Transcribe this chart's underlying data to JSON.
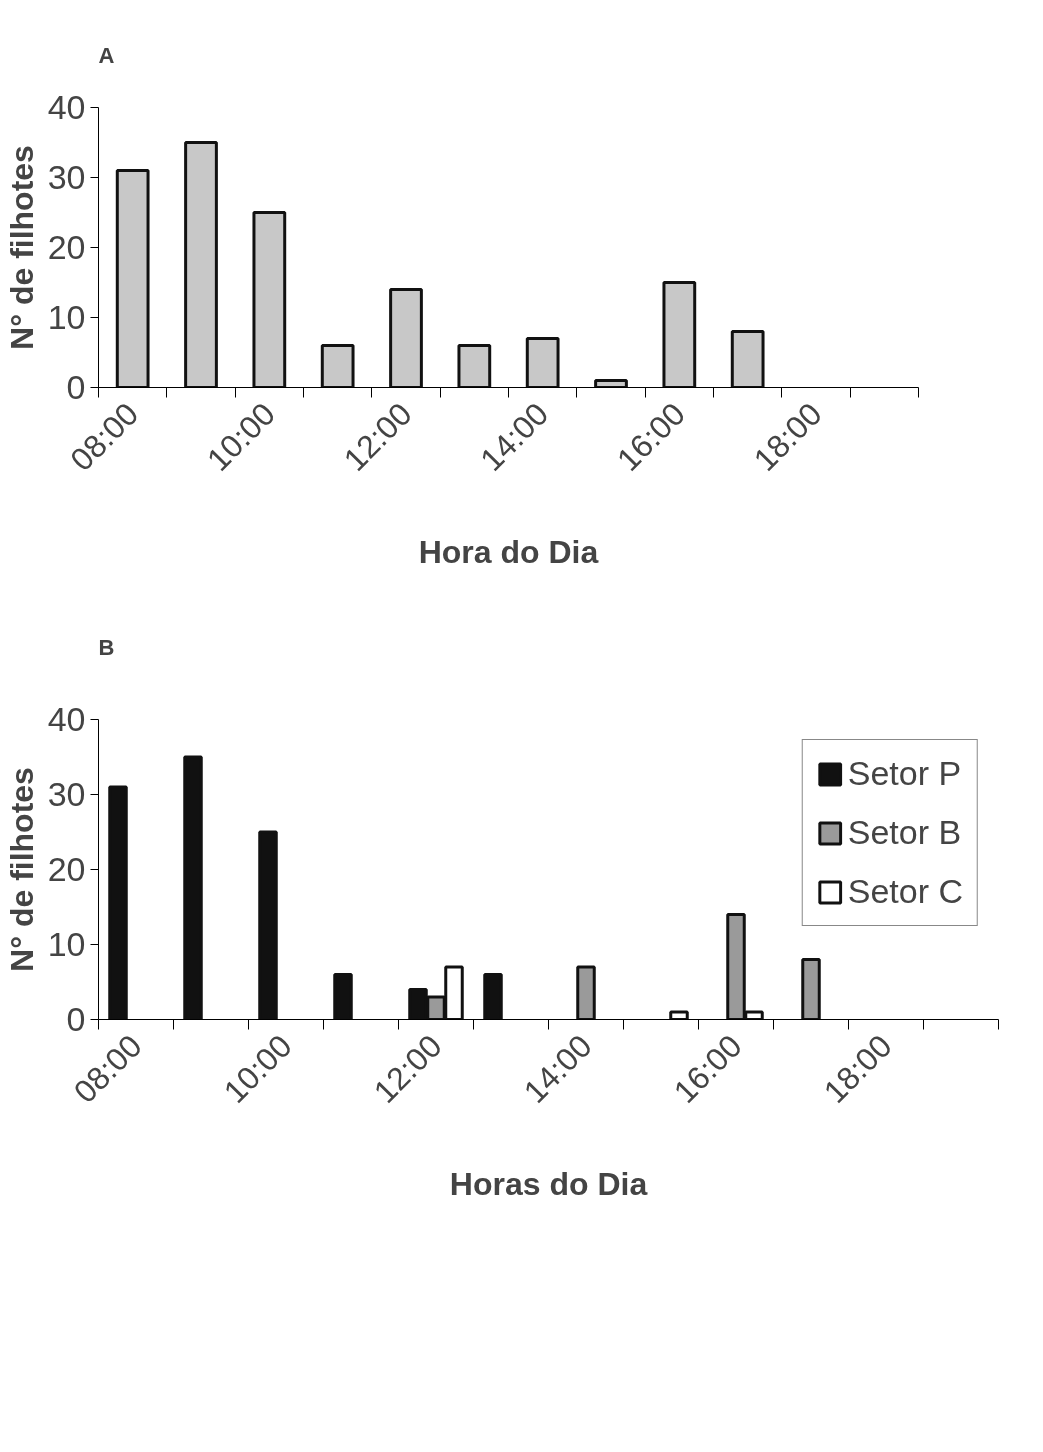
{
  "chart_data": [
    {
      "type": "bar",
      "title": "A",
      "xlabel": "Hora do Dia",
      "ylabel": "N° de filhotes",
      "categories": [
        "08:00",
        null,
        "10:00",
        null,
        "12:00",
        null,
        "14:00",
        null,
        "16:00",
        null,
        "18:00",
        null
      ],
      "values": [
        31,
        35,
        25,
        6,
        14,
        6,
        7,
        1,
        15,
        8,
        null,
        null
      ],
      "color": "#c8c8c8",
      "ylim": [
        0,
        40
      ],
      "yticks": [
        0,
        10,
        20,
        30,
        40
      ],
      "grid": false,
      "legend": false
    },
    {
      "type": "bar",
      "title": "B",
      "xlabel": "Horas do Dia",
      "ylabel": "N° de filhotes",
      "categories": [
        "08:00",
        null,
        "10:00",
        null,
        "12:00",
        null,
        "14:00",
        null,
        "16:00",
        null,
        "18:00",
        null
      ],
      "series": [
        {
          "name": "Setor P",
          "color": "#111111",
          "values": [
            31,
            35,
            25,
            6,
            4,
            6,
            null,
            null,
            null,
            null,
            null,
            null
          ]
        },
        {
          "name": "Setor B",
          "color": "#9a9a9a",
          "values": [
            null,
            null,
            null,
            null,
            3,
            null,
            7,
            null,
            14,
            8,
            null,
            null
          ]
        },
        {
          "name": "Setor C",
          "color": "#ffffff",
          "values": [
            null,
            null,
            null,
            null,
            7,
            null,
            null,
            1,
            1,
            null,
            null,
            null
          ]
        }
      ],
      "ylim": [
        0,
        40
      ],
      "yticks": [
        0,
        10,
        20,
        30,
        40
      ],
      "grid": false,
      "legend": "right"
    }
  ]
}
